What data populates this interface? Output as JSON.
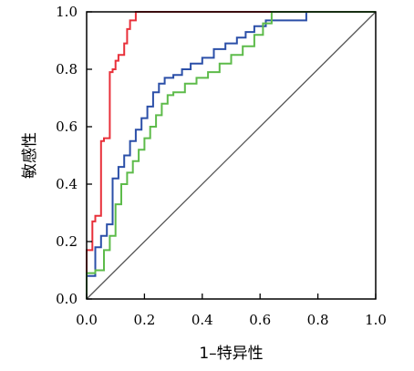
{
  "chart_data": {
    "type": "line",
    "xlabel": "1–特异性",
    "ylabel": "敏感性",
    "xlim": [
      0,
      1
    ],
    "ylim": [
      0,
      1
    ],
    "x_ticks": [
      "0.0",
      "0.2",
      "0.4",
      "0.6",
      "0.8",
      "1.0"
    ],
    "y_ticks": [
      "0.0",
      "0.2",
      "0.4",
      "0.6",
      "0.8",
      "1.0"
    ],
    "grid": false,
    "legend": "none",
    "reference_line": {
      "x": [
        0,
        1
      ],
      "y": [
        0,
        1
      ],
      "color": "#555555"
    },
    "series": [
      {
        "color": "#e8303a",
        "x": [
          0,
          0,
          0.02,
          0.02,
          0.03,
          0.03,
          0.05,
          0.05,
          0.06,
          0.06,
          0.08,
          0.08,
          0.09,
          0.09,
          0.1,
          0.1,
          0.11,
          0.11,
          0.13,
          0.13,
          0.14,
          0.14,
          0.15,
          0.15,
          0.17,
          0.17,
          1.0
        ],
        "y": [
          0,
          0.17,
          0.17,
          0.27,
          0.27,
          0.29,
          0.29,
          0.55,
          0.55,
          0.56,
          0.56,
          0.79,
          0.79,
          0.8,
          0.8,
          0.83,
          0.83,
          0.85,
          0.85,
          0.89,
          0.89,
          0.94,
          0.94,
          0.97,
          0.97,
          1.0,
          1.0
        ]
      },
      {
        "color": "#2b4fa8",
        "x": [
          0,
          0,
          0.03,
          0.03,
          0.05,
          0.05,
          0.07,
          0.07,
          0.09,
          0.09,
          0.11,
          0.11,
          0.13,
          0.13,
          0.15,
          0.15,
          0.17,
          0.17,
          0.19,
          0.19,
          0.21,
          0.21,
          0.23,
          0.23,
          0.25,
          0.25,
          0.27,
          0.27,
          0.3,
          0.3,
          0.33,
          0.33,
          0.36,
          0.36,
          0.4,
          0.4,
          0.44,
          0.44,
          0.48,
          0.48,
          0.52,
          0.52,
          0.55,
          0.55,
          0.58,
          0.58,
          0.62,
          0.62,
          0.76,
          0.76,
          1.0
        ],
        "y": [
          0,
          0.08,
          0.08,
          0.18,
          0.18,
          0.22,
          0.22,
          0.26,
          0.26,
          0.42,
          0.42,
          0.46,
          0.46,
          0.5,
          0.5,
          0.55,
          0.55,
          0.59,
          0.59,
          0.63,
          0.63,
          0.67,
          0.67,
          0.72,
          0.72,
          0.75,
          0.75,
          0.77,
          0.77,
          0.78,
          0.78,
          0.8,
          0.8,
          0.82,
          0.82,
          0.84,
          0.84,
          0.87,
          0.87,
          0.89,
          0.89,
          0.91,
          0.91,
          0.93,
          0.93,
          0.95,
          0.95,
          0.97,
          0.97,
          1.0,
          1.0
        ]
      },
      {
        "color": "#5dbb4a",
        "x": [
          0,
          0,
          0.03,
          0.03,
          0.06,
          0.06,
          0.08,
          0.08,
          0.1,
          0.1,
          0.12,
          0.12,
          0.14,
          0.14,
          0.16,
          0.16,
          0.18,
          0.18,
          0.2,
          0.2,
          0.22,
          0.22,
          0.24,
          0.24,
          0.26,
          0.26,
          0.28,
          0.28,
          0.3,
          0.3,
          0.34,
          0.34,
          0.38,
          0.38,
          0.42,
          0.42,
          0.46,
          0.46,
          0.5,
          0.5,
          0.54,
          0.54,
          0.58,
          0.58,
          0.61,
          0.61,
          0.64,
          0.64,
          1.0
        ],
        "y": [
          0,
          0.09,
          0.09,
          0.1,
          0.1,
          0.17,
          0.17,
          0.22,
          0.22,
          0.33,
          0.33,
          0.4,
          0.4,
          0.44,
          0.44,
          0.48,
          0.48,
          0.52,
          0.52,
          0.56,
          0.56,
          0.6,
          0.6,
          0.64,
          0.64,
          0.68,
          0.68,
          0.71,
          0.71,
          0.72,
          0.72,
          0.75,
          0.75,
          0.77,
          0.77,
          0.79,
          0.79,
          0.82,
          0.82,
          0.85,
          0.85,
          0.88,
          0.88,
          0.92,
          0.92,
          0.96,
          0.96,
          1.0,
          1.0
        ]
      }
    ]
  }
}
